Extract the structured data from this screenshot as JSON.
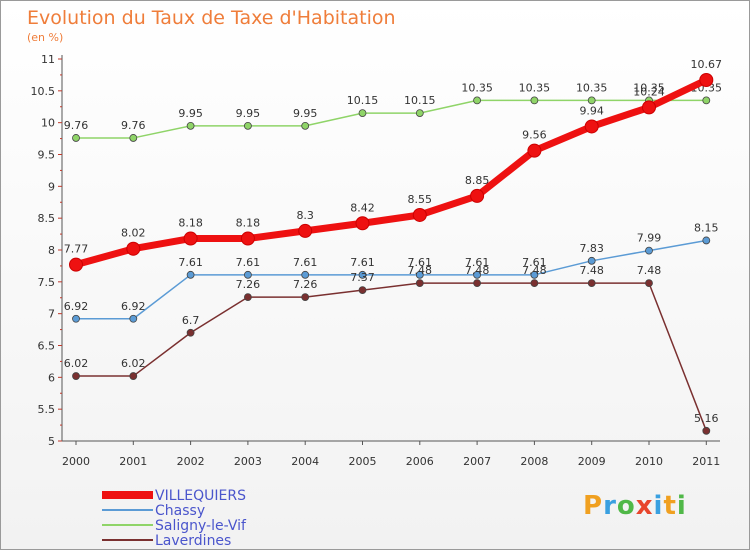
{
  "page": {
    "title": "Evolution du Taux de Taxe d'Habitation",
    "unit": "(en %)"
  },
  "logo": {
    "text": "Proxiti"
  },
  "chart_data": {
    "type": "line",
    "title": "Evolution du Taux de Taxe d'Habitation",
    "subtitle": "(en %)",
    "xlabel": "",
    "ylabel": "",
    "ylim": [
      5,
      11
    ],
    "yticks": [
      "5",
      "5.5",
      "6",
      "6.5",
      "7",
      "7.5",
      "8",
      "8.5",
      "9",
      "9.5",
      "10",
      "10.5",
      "11"
    ],
    "x": [
      "2000",
      "2001",
      "2002",
      "2003",
      "2004",
      "2005",
      "2006",
      "2007",
      "2008",
      "2009",
      "2010",
      "2011"
    ],
    "grid": false,
    "legend_position": "bottom-left",
    "series": [
      {
        "name": "VILLEQUIERS",
        "color": "#ee1111",
        "values": [
          7.77,
          8.02,
          8.18,
          8.18,
          8.3,
          8.42,
          8.55,
          8.85,
          9.56,
          9.94,
          10.24,
          10.67
        ],
        "labels": [
          "7.77",
          "8.02",
          "8.18",
          "8.18",
          "8.3",
          "8.42",
          "8.55",
          "8.85",
          "9.56",
          "9.94",
          "10.24",
          "10.67"
        ]
      },
      {
        "name": "Chassy",
        "color": "#5b9bd5",
        "values": [
          6.92,
          6.92,
          7.61,
          7.61,
          7.61,
          7.61,
          7.61,
          7.61,
          7.61,
          7.83,
          7.99,
          8.15
        ],
        "labels": [
          "6.92",
          "6.92",
          "7.61",
          "7.61",
          "7.61",
          "7.61",
          "7.61",
          "7.61",
          "7.61",
          "7.83",
          "7.99",
          "8.15"
        ]
      },
      {
        "name": "Saligny-le-Vif",
        "color": "#8fd468",
        "values": [
          9.76,
          9.76,
          9.95,
          9.95,
          9.95,
          10.15,
          10.15,
          10.35,
          10.35,
          10.35,
          10.35,
          10.35
        ],
        "labels": [
          "9.76",
          "9.76",
          "9.95",
          "9.95",
          "9.95",
          "10.15",
          "10.15",
          "10.35",
          "10.35",
          "10.35",
          "10.35",
          "10.35"
        ]
      },
      {
        "name": "Laverdines",
        "color": "#7a3030",
        "values": [
          6.02,
          6.02,
          6.7,
          7.26,
          7.26,
          7.37,
          7.48,
          7.48,
          7.48,
          7.48,
          7.48,
          5.16
        ],
        "labels": [
          "6.02",
          "6.02",
          "6.7",
          "7.26",
          "7.26",
          "7.37",
          "7.48",
          "7.48",
          "7.48",
          "7.48",
          "7.48",
          "5.16"
        ]
      }
    ]
  }
}
